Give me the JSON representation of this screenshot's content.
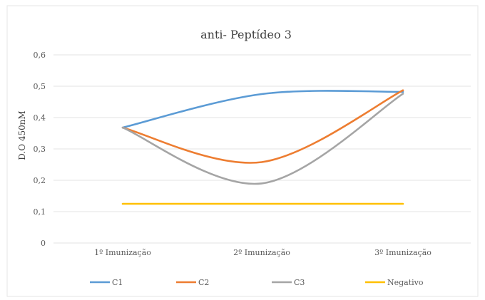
{
  "chart_data": {
    "type": "line",
    "title": "anti- Peptídeo 3",
    "xlabel": "",
    "ylabel": "D.O 450nM",
    "categories": [
      "1º Imunização",
      "2º Imunização",
      "3º Imunização"
    ],
    "ylim": [
      0,
      0.6
    ],
    "yticks": [
      "0",
      "0,1",
      "0,2",
      "0,3",
      "0,4",
      "0,5",
      "0,6"
    ],
    "grid": true,
    "legend_position": "bottom",
    "smooth": true,
    "series": [
      {
        "name": "C1",
        "color": "#5b9bd5",
        "values": [
          0.368,
          0.475,
          0.482
        ]
      },
      {
        "name": "C2",
        "color": "#ed7d31",
        "values": [
          0.368,
          0.258,
          0.487
        ]
      },
      {
        "name": "C3",
        "color": "#a5a5a5",
        "values": [
          0.368,
          0.19,
          0.476
        ]
      },
      {
        "name": "Negativo",
        "color": "#ffc000",
        "values": [
          0.125,
          0.125,
          0.125
        ]
      }
    ]
  }
}
